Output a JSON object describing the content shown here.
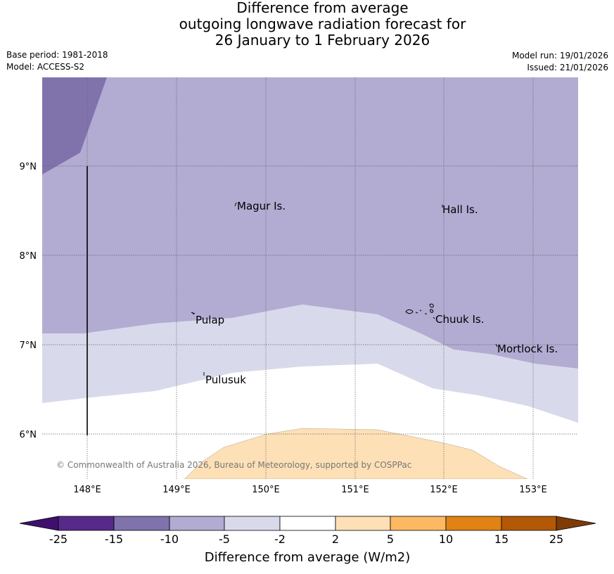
{
  "title": {
    "line1": "Difference from average",
    "line2": "outgoing longwave radiation forecast for",
    "line3": "26 January to 1 February 2026"
  },
  "meta": {
    "base_period": "Base period: 1981-2018",
    "model": "Model: ACCESS-S2",
    "model_run": "Model run: 19/01/2026",
    "issued": "Issued: 21/01/2026"
  },
  "map": {
    "lat_labels": [
      "9°N",
      "8°N",
      "7°N",
      "6°N"
    ],
    "lon_labels": [
      "148°E",
      "149°E",
      "150°E",
      "151°E",
      "152°E",
      "153°E"
    ],
    "places": [
      "Magur Is.",
      "Hall Is.",
      "Pulap",
      "Chuuk Is.",
      "Mortlock Is.",
      "Pulusuk"
    ],
    "copyright": "© Commonwealth of Australia 2026, Bureau of Meteorology, supported by COSPPac"
  },
  "colorbar": {
    "ticks": [
      "-25",
      "-15",
      "-10",
      "-5",
      "-2",
      "2",
      "5",
      "10",
      "15",
      "25"
    ],
    "colors": [
      "#3f0f6e",
      "#57298a",
      "#8073ac",
      "#b2abd2",
      "#d8daeb",
      "#ffffff",
      "#fee0b6",
      "#fdb863",
      "#e08214",
      "#b35806",
      "#7f3b08"
    ],
    "label": "Difference from average (W/m2)"
  }
}
